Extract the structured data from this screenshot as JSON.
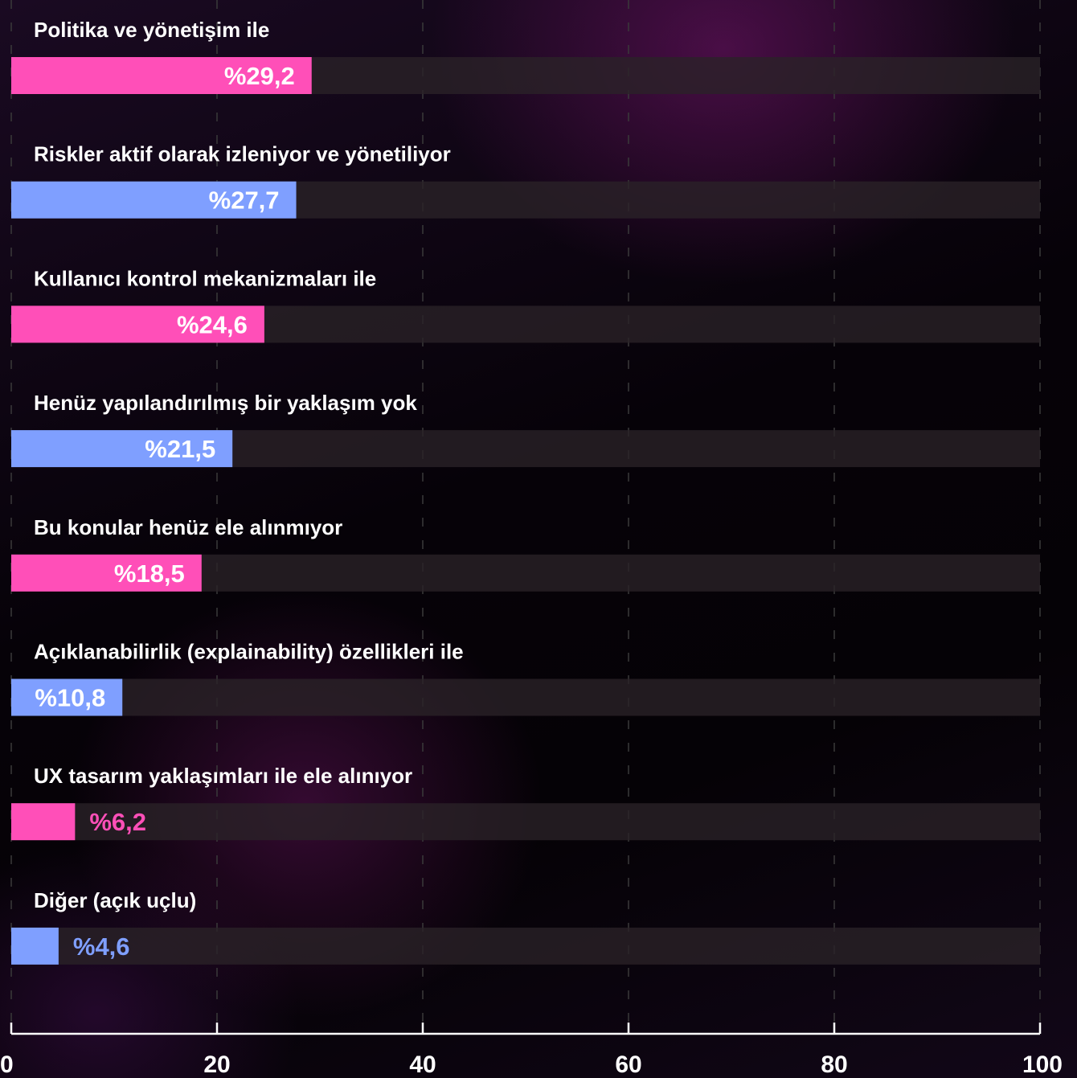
{
  "chart_data": {
    "type": "bar",
    "orientation": "horizontal",
    "categories": [
      "Politika ve yönetişim ile",
      "Riskler aktif olarak izleniyor ve yönetiliyor",
      "Kullanıcı kontrol mekanizmaları ile",
      "Henüz yapılandırılmış bir yaklaşım yok",
      "Bu konular henüz ele alınmıyor",
      "Açıklanabilirlik (explainability) özellikleri ile",
      "UX tasarım yaklaşımları ile ele alınıyor",
      "Diğer (açık uçlu)"
    ],
    "values": [
      29.2,
      27.7,
      24.6,
      21.5,
      18.5,
      10.8,
      6.2,
      4.6
    ],
    "value_labels": [
      "%29,2",
      "%27,7",
      "%24,6",
      "%21,5",
      "%18,5",
      "%10,8",
      "%6,2",
      "%4,6"
    ],
    "bar_colors": [
      "#ff4fb8",
      "#7f9fff",
      "#ff4fb8",
      "#7f9fff",
      "#ff4fb8",
      "#7f9fff",
      "#ff4fb8",
      "#7f9fff"
    ],
    "track_color": "#2a2228",
    "xlim": [
      0,
      100
    ],
    "x_ticks": [
      "0",
      "20",
      "40",
      "60",
      "80",
      "100"
    ],
    "grid": "vertical dashed",
    "title": "",
    "xlabel": "",
    "ylabel": ""
  }
}
